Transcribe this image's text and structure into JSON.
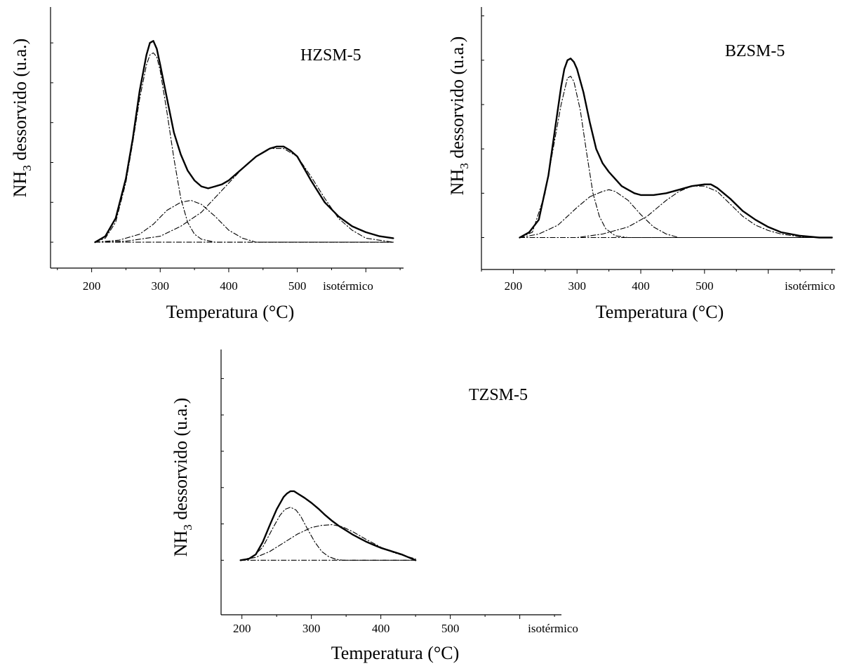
{
  "chart_data": [
    {
      "type": "line",
      "panel_label": "HZSM-5",
      "xlabel": "Temperatura (°C)",
      "ylabel": {
        "main": "NH",
        "sub": "3",
        "rest": " dessorvido (u.a.)"
      },
      "x_ticks": [
        200,
        300,
        400,
        500
      ],
      "x_extra_label": "isotérmico",
      "xlim": [
        140,
        655
      ],
      "ylim": [
        -0.13,
        1.18
      ],
      "y_ticks": [
        0,
        0.2,
        0.4,
        0.6,
        0.8,
        1.0
      ],
      "grid": false,
      "series": [
        {
          "style": "measured",
          "x": [
            205,
            220,
            235,
            250,
            260,
            270,
            280,
            285,
            290,
            295,
            300,
            310,
            320,
            330,
            340,
            350,
            360,
            370,
            380,
            390,
            400,
            410,
            420,
            430,
            440,
            450,
            460,
            470,
            480,
            490,
            500,
            510,
            520,
            540,
            560,
            580,
            600,
            620,
            640
          ],
          "y": [
            0.0,
            0.03,
            0.12,
            0.32,
            0.52,
            0.76,
            0.94,
            1.0,
            1.01,
            0.97,
            0.89,
            0.72,
            0.55,
            0.44,
            0.36,
            0.31,
            0.28,
            0.27,
            0.28,
            0.29,
            0.31,
            0.34,
            0.37,
            0.4,
            0.43,
            0.45,
            0.47,
            0.48,
            0.48,
            0.46,
            0.43,
            0.37,
            0.31,
            0.2,
            0.13,
            0.08,
            0.05,
            0.03,
            0.02
          ]
        },
        {
          "style": "fit",
          "x": [
            205,
            220,
            235,
            250,
            260,
            270,
            280,
            285,
            290,
            295,
            300,
            310,
            320,
            330,
            340,
            350,
            360,
            380,
            400,
            450,
            500,
            550,
            600,
            640
          ],
          "y": [
            0.0,
            0.02,
            0.1,
            0.3,
            0.5,
            0.72,
            0.89,
            0.94,
            0.95,
            0.93,
            0.86,
            0.65,
            0.42,
            0.22,
            0.1,
            0.04,
            0.015,
            0.0,
            0.0,
            0.0,
            0.0,
            0.0,
            0.0,
            0.0
          ]
        },
        {
          "style": "fit",
          "x": [
            205,
            240,
            270,
            290,
            310,
            330,
            345,
            360,
            380,
            400,
            420,
            440,
            640
          ],
          "y": [
            0.0,
            0.01,
            0.04,
            0.09,
            0.16,
            0.2,
            0.21,
            0.19,
            0.13,
            0.06,
            0.02,
            0.0,
            0.0
          ]
        },
        {
          "style": "fit",
          "x": [
            205,
            250,
            300,
            330,
            360,
            390,
            420,
            440,
            460,
            480,
            500,
            520,
            540,
            560,
            580,
            600,
            640
          ],
          "y": [
            0.0,
            0.005,
            0.03,
            0.08,
            0.15,
            0.26,
            0.37,
            0.43,
            0.47,
            0.47,
            0.43,
            0.33,
            0.22,
            0.12,
            0.06,
            0.02,
            0.0
          ]
        },
        {
          "style": "baseline",
          "x": [
            205,
            640
          ],
          "y": [
            0.0,
            0.0
          ]
        }
      ]
    },
    {
      "type": "line",
      "panel_label": "BZSM-5",
      "xlabel": "Temperatura (°C)",
      "ylabel": {
        "main": "NH",
        "sub": "3",
        "rest": " dessorvido (u.a.)"
      },
      "x_ticks": [
        200,
        300,
        400,
        500
      ],
      "x_extra_label": "isotérmico",
      "xlim": [
        150,
        705
      ],
      "ylim": [
        -0.18,
        1.3
      ],
      "y_ticks": [
        0,
        0.25,
        0.5,
        0.75,
        1.0,
        1.25
      ],
      "grid": false,
      "series": [
        {
          "style": "measured",
          "x": [
            210,
            225,
            240,
            255,
            265,
            275,
            280,
            285,
            290,
            295,
            300,
            310,
            320,
            330,
            340,
            350,
            360,
            370,
            380,
            390,
            400,
            420,
            440,
            460,
            480,
            500,
            510,
            520,
            540,
            560,
            580,
            600,
            620,
            650,
            680,
            700
          ],
          "y": [
            0.0,
            0.03,
            0.1,
            0.35,
            0.6,
            0.85,
            0.95,
            1.0,
            1.01,
            0.99,
            0.95,
            0.82,
            0.65,
            0.5,
            0.42,
            0.37,
            0.33,
            0.29,
            0.27,
            0.25,
            0.24,
            0.24,
            0.25,
            0.27,
            0.29,
            0.3,
            0.3,
            0.28,
            0.22,
            0.15,
            0.1,
            0.06,
            0.03,
            0.01,
            0.0,
            0.0
          ]
        },
        {
          "style": "fit",
          "x": [
            210,
            230,
            250,
            265,
            275,
            285,
            290,
            295,
            305,
            315,
            325,
            335,
            345,
            360,
            380,
            450,
            700
          ],
          "y": [
            0.0,
            0.03,
            0.25,
            0.55,
            0.75,
            0.9,
            0.91,
            0.88,
            0.72,
            0.48,
            0.25,
            0.12,
            0.05,
            0.01,
            0.0,
            0.0,
            0.0
          ]
        },
        {
          "style": "fit",
          "x": [
            210,
            240,
            270,
            300,
            320,
            340,
            350,
            360,
            380,
            400,
            420,
            440,
            460,
            700
          ],
          "y": [
            0.0,
            0.02,
            0.07,
            0.17,
            0.23,
            0.26,
            0.27,
            0.26,
            0.21,
            0.13,
            0.06,
            0.02,
            0.0,
            0.0
          ]
        },
        {
          "style": "fit",
          "x": [
            210,
            300,
            340,
            380,
            410,
            440,
            460,
            480,
            500,
            520,
            540,
            560,
            580,
            600,
            620,
            650,
            700
          ],
          "y": [
            0.0,
            0.0,
            0.02,
            0.06,
            0.12,
            0.21,
            0.26,
            0.29,
            0.29,
            0.26,
            0.19,
            0.12,
            0.07,
            0.04,
            0.02,
            0.005,
            0.0
          ]
        },
        {
          "style": "baseline",
          "x": [
            210,
            700
          ],
          "y": [
            0.0,
            0.0
          ]
        }
      ]
    },
    {
      "type": "line",
      "panel_label": "TZSM-5",
      "xlabel": "Temperatura (°C)",
      "ylabel": {
        "main": "NH",
        "sub": "3",
        "rest": " dessorvido (u.a.)"
      },
      "x_ticks": [
        200,
        300,
        400,
        500
      ],
      "x_extra_label": "isotérmico",
      "xlim": [
        170,
        660
      ],
      "ylim": [
        -0.75,
        2.9
      ],
      "y_ticks": [
        0,
        0.5,
        1.0,
        1.5,
        2.0,
        2.5
      ],
      "grid": false,
      "series": [
        {
          "style": "measured",
          "x": [
            198,
            210,
            220,
            230,
            240,
            250,
            260,
            265,
            270,
            275,
            280,
            290,
            300,
            310,
            320,
            330,
            340,
            350,
            360,
            370,
            380,
            390,
            400,
            410,
            420,
            430,
            440,
            450
          ],
          "y": [
            0.0,
            0.02,
            0.08,
            0.25,
            0.48,
            0.7,
            0.87,
            0.92,
            0.95,
            0.95,
            0.92,
            0.86,
            0.79,
            0.71,
            0.62,
            0.54,
            0.47,
            0.41,
            0.35,
            0.3,
            0.25,
            0.21,
            0.17,
            0.14,
            0.11,
            0.08,
            0.04,
            0.0
          ]
        },
        {
          "style": "fit",
          "x": [
            198,
            215,
            230,
            245,
            255,
            262,
            270,
            278,
            285,
            295,
            305,
            315,
            325,
            335,
            345,
            360,
            450
          ],
          "y": [
            0.0,
            0.04,
            0.18,
            0.45,
            0.62,
            0.7,
            0.73,
            0.69,
            0.6,
            0.42,
            0.25,
            0.12,
            0.05,
            0.015,
            0.0,
            0.0,
            0.0
          ]
        },
        {
          "style": "fit",
          "x": [
            198,
            220,
            240,
            260,
            280,
            300,
            315,
            330,
            345,
            360,
            380,
            400,
            420,
            450
          ],
          "y": [
            0.0,
            0.04,
            0.12,
            0.24,
            0.36,
            0.45,
            0.48,
            0.49,
            0.46,
            0.39,
            0.28,
            0.18,
            0.1,
            0.02
          ]
        },
        {
          "style": "baseline",
          "x": [
            198,
            450
          ],
          "y": [
            0.0,
            0.0
          ]
        }
      ]
    }
  ]
}
